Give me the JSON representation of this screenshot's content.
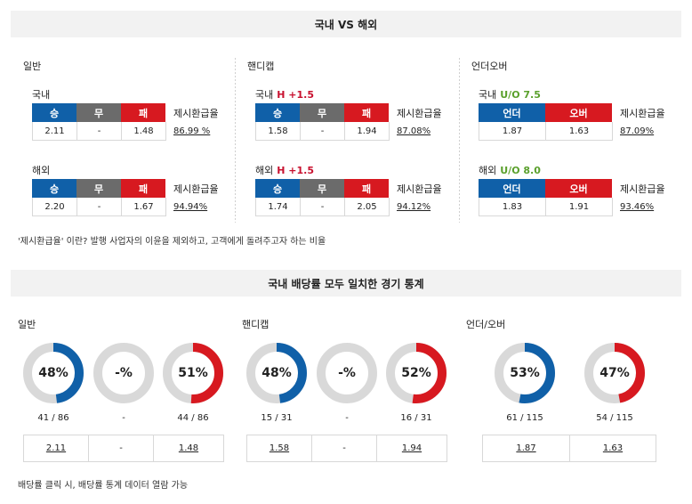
{
  "header1": "국내 VS 해외",
  "header2": "국내 배당률 모두 일치한 경기 통계",
  "odds": {
    "general": {
      "title": "일반",
      "domestic": {
        "label": "국내",
        "h1": "승",
        "h2": "무",
        "h3": "패",
        "v1": "2.11",
        "v2": "-",
        "v3": "1.48",
        "ret_label": "제시환급율",
        "ret": "86.99 %"
      },
      "overseas": {
        "label": "해외",
        "h1": "승",
        "h2": "무",
        "h3": "패",
        "v1": "2.20",
        "v2": "-",
        "v3": "1.67",
        "ret_label": "제시환급율",
        "ret": "94.94%"
      }
    },
    "handicap": {
      "title": "핸디캡",
      "domestic": {
        "label": "국내",
        "extra": "H +1.5",
        "h1": "승",
        "h2": "무",
        "h3": "패",
        "v1": "1.58",
        "v2": "-",
        "v3": "1.94",
        "ret_label": "제시환급율",
        "ret": "87.08%"
      },
      "overseas": {
        "label": "해외",
        "extra": "H +1.5",
        "h1": "승",
        "h2": "무",
        "h3": "패",
        "v1": "1.74",
        "v2": "-",
        "v3": "2.05",
        "ret_label": "제시환급율",
        "ret": "94.12%"
      }
    },
    "underover": {
      "title": "언더오버",
      "domestic": {
        "label": "국내",
        "extra": "U/O 7.5",
        "h1": "언더",
        "h2": "오버",
        "v1": "1.87",
        "v2": "1.63",
        "ret_label": "제시환급율",
        "ret": "87.09%"
      },
      "overseas": {
        "label": "해외",
        "extra": "U/O 8.0",
        "h1": "언더",
        "h2": "오버",
        "v1": "1.83",
        "v2": "1.91",
        "ret_label": "제시환급율",
        "ret": "93.46%"
      }
    }
  },
  "note": "'제시환급율' 이란? 발행 사업자의 이윤을 제외하고, 고객에게 돌려주고자 하는 비율",
  "stats": {
    "general": {
      "title": "일반",
      "donuts": [
        {
          "pct_text": "48%",
          "fraction": 0.48,
          "color": "#1060a8",
          "count": "41 / 86"
        },
        {
          "pct_text": "-%",
          "fraction": 0,
          "color": "#6b6b6b",
          "count": "-"
        },
        {
          "pct_text": "51%",
          "fraction": 0.51,
          "color": "#d71920",
          "count": "44 / 86"
        }
      ],
      "odds": [
        "2.11",
        "-",
        "1.48"
      ]
    },
    "handicap": {
      "title": "핸디캡",
      "donuts": [
        {
          "pct_text": "48%",
          "fraction": 0.48,
          "color": "#1060a8",
          "count": "15 / 31"
        },
        {
          "pct_text": "-%",
          "fraction": 0,
          "color": "#6b6b6b",
          "count": "-"
        },
        {
          "pct_text": "52%",
          "fraction": 0.52,
          "color": "#d71920",
          "count": "16 / 31"
        }
      ],
      "odds": [
        "1.58",
        "-",
        "1.94"
      ]
    },
    "underover": {
      "title": "언더/오버",
      "donuts": [
        {
          "pct_text": "53%",
          "fraction": 0.53,
          "color": "#1060a8",
          "count": "61 / 115"
        },
        {
          "pct_text": "47%",
          "fraction": 0.47,
          "color": "#d71920",
          "count": "54 / 115"
        }
      ],
      "odds": [
        "1.87",
        "1.63"
      ]
    }
  },
  "note2": "배당률 클릭 시, 배당률 통계 데이터 열람 가능",
  "colors": {
    "win": "#1060a8",
    "draw": "#6b6b6b",
    "loss": "#d71920",
    "track": "#d9d9d9",
    "handicap_text": "#c8102e",
    "uo_text": "#5aa02c"
  }
}
